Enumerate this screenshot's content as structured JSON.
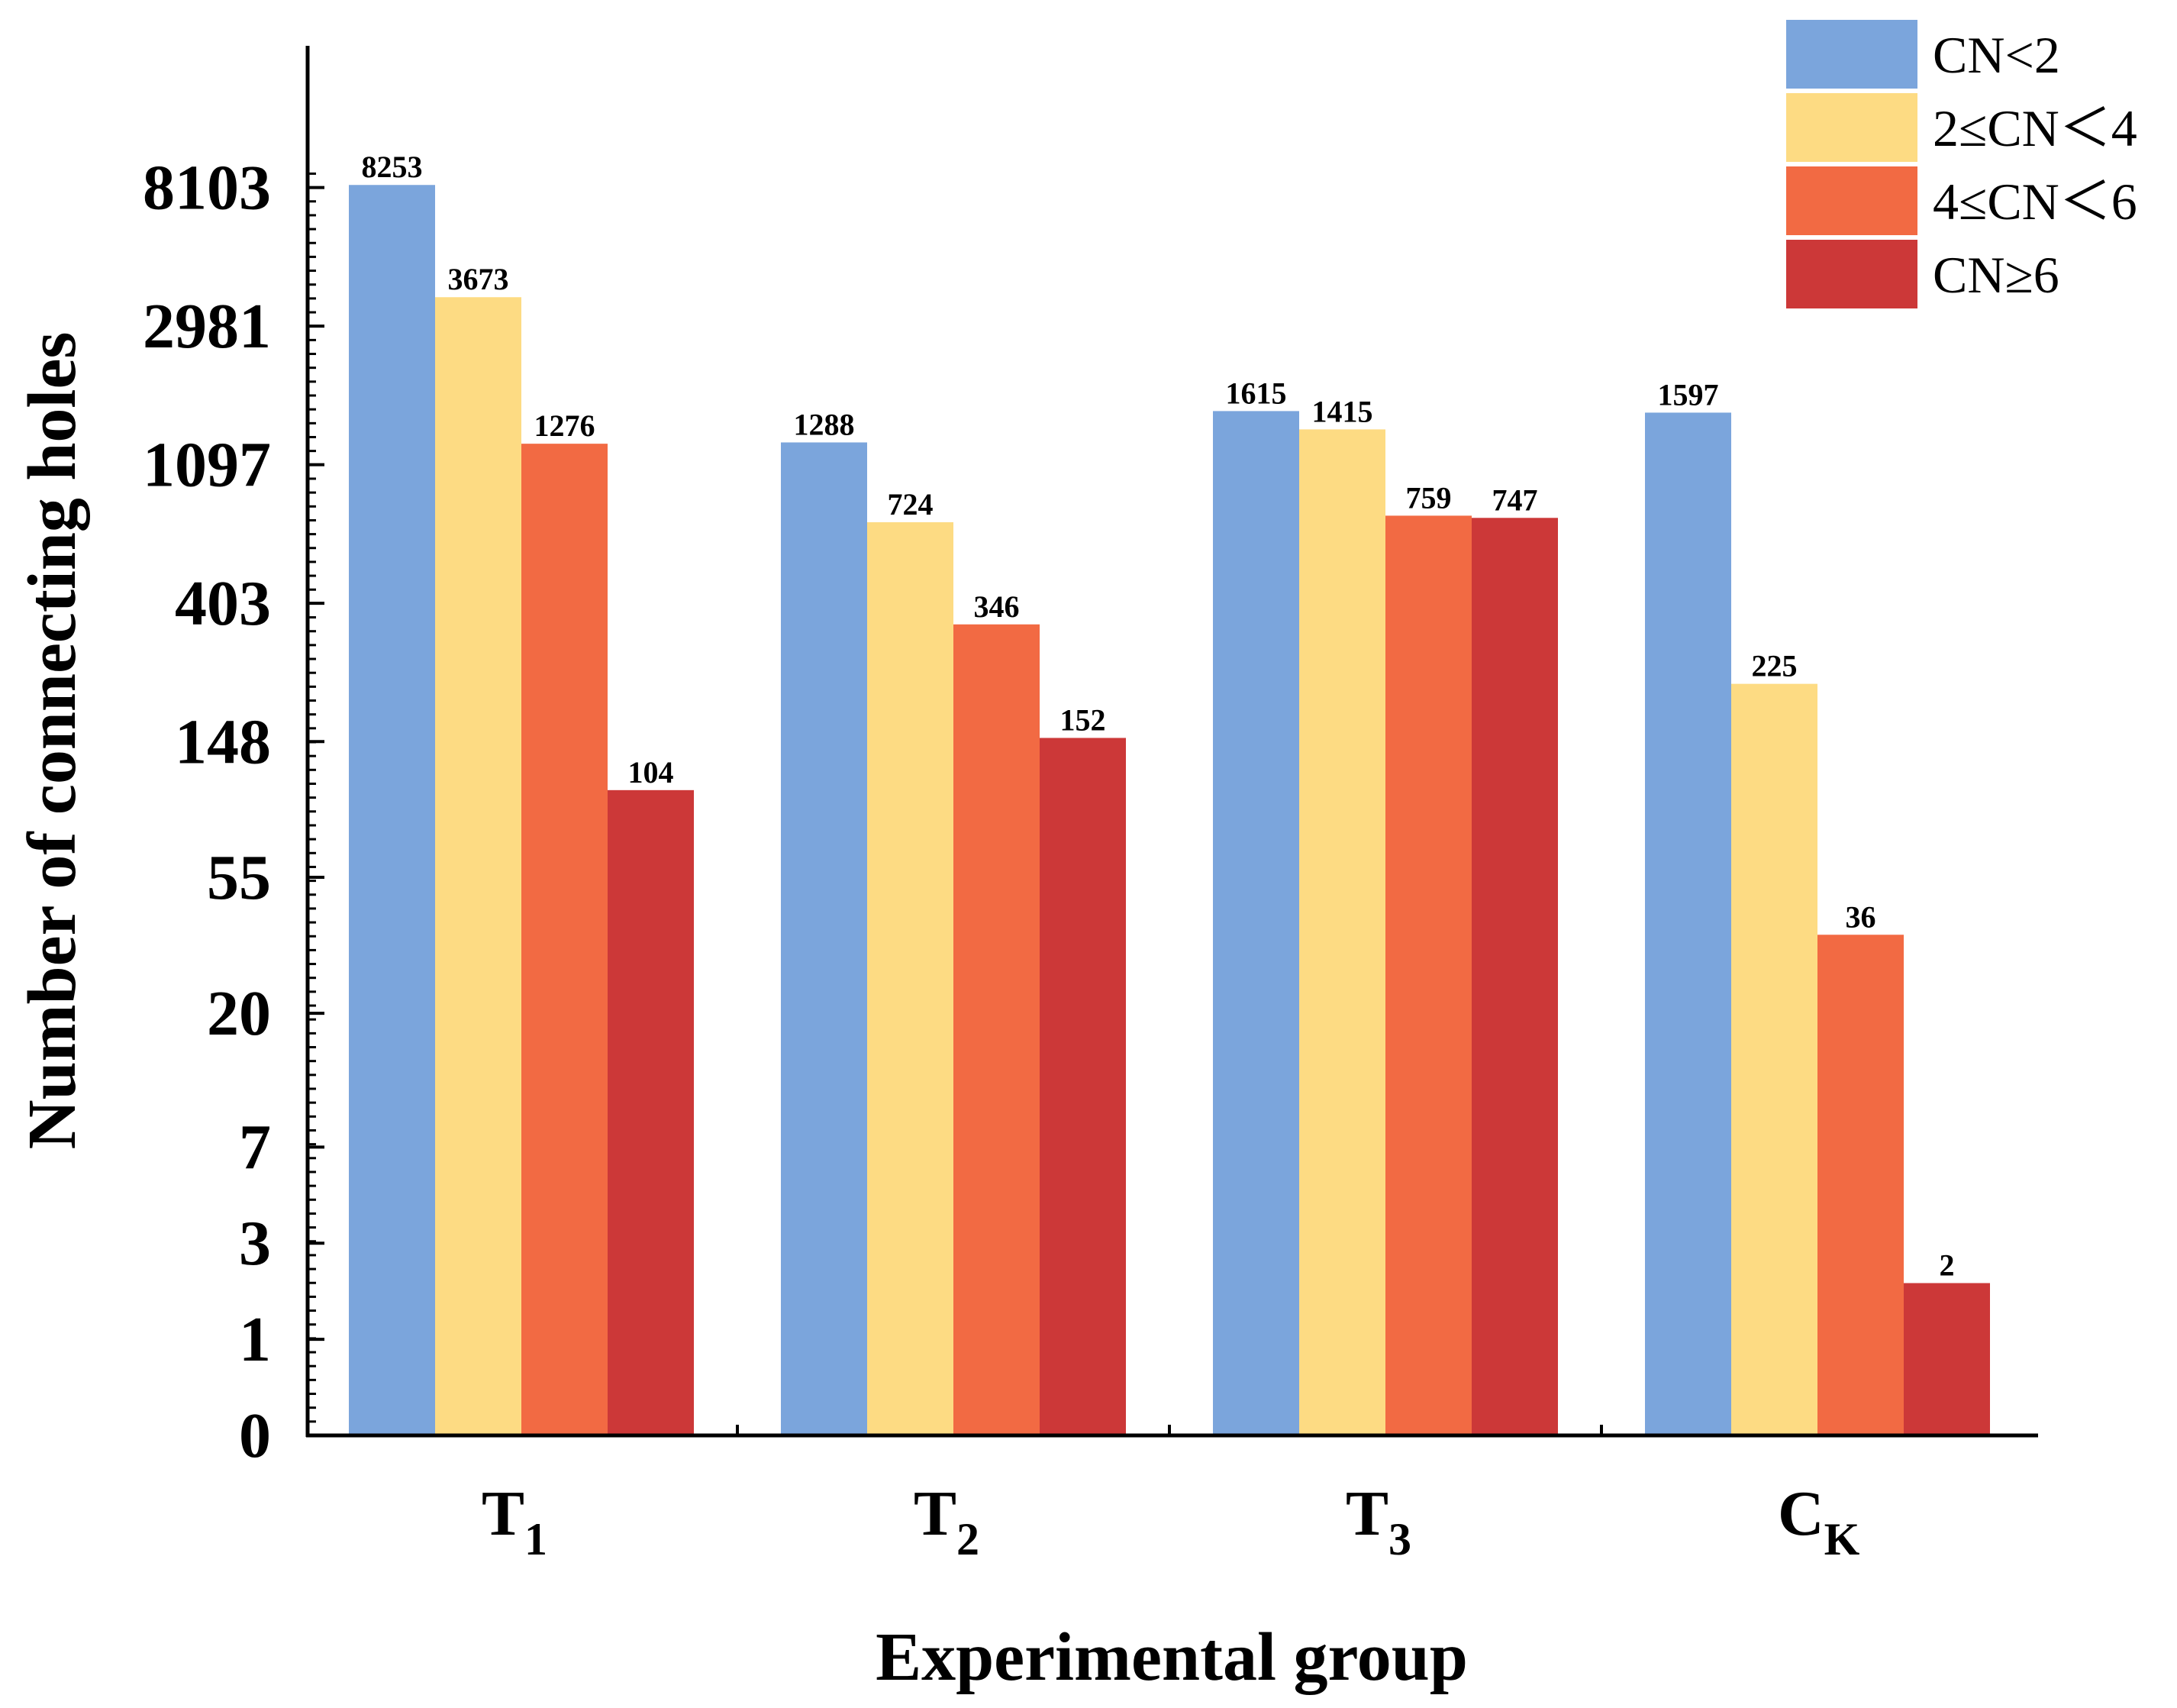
{
  "chart_data": {
    "type": "bar",
    "title": "",
    "xlabel": "Experimental group",
    "ylabel": "Number of connecting holes",
    "yscale": "log-like (ln(value+1))",
    "ytick_labels": [
      "0",
      "1",
      "3",
      "7",
      "20",
      "55",
      "148",
      "403",
      "1097",
      "2981",
      "8103"
    ],
    "categories": [
      {
        "main": "T",
        "sub": "1"
      },
      {
        "main": "T",
        "sub": "2"
      },
      {
        "main": "T",
        "sub": "3"
      },
      {
        "main": "C",
        "sub": "K"
      }
    ],
    "series": [
      {
        "name": "CN<2",
        "color": "#7ba5dc",
        "values": [
          8253,
          1288,
          1615,
          1597
        ]
      },
      {
        "name": "2≤CN＜4",
        "color": "#fddb83",
        "values": [
          3673,
          724,
          1415,
          225
        ]
      },
      {
        "name": "4≤CN＜6",
        "color": "#f26a43",
        "values": [
          1276,
          346,
          759,
          36
        ]
      },
      {
        "name": "CN≥6",
        "color": "#cc3838",
        "values": [
          104,
          152,
          747,
          2
        ]
      }
    ],
    "legend_position": "top-right",
    "grid": false
  }
}
